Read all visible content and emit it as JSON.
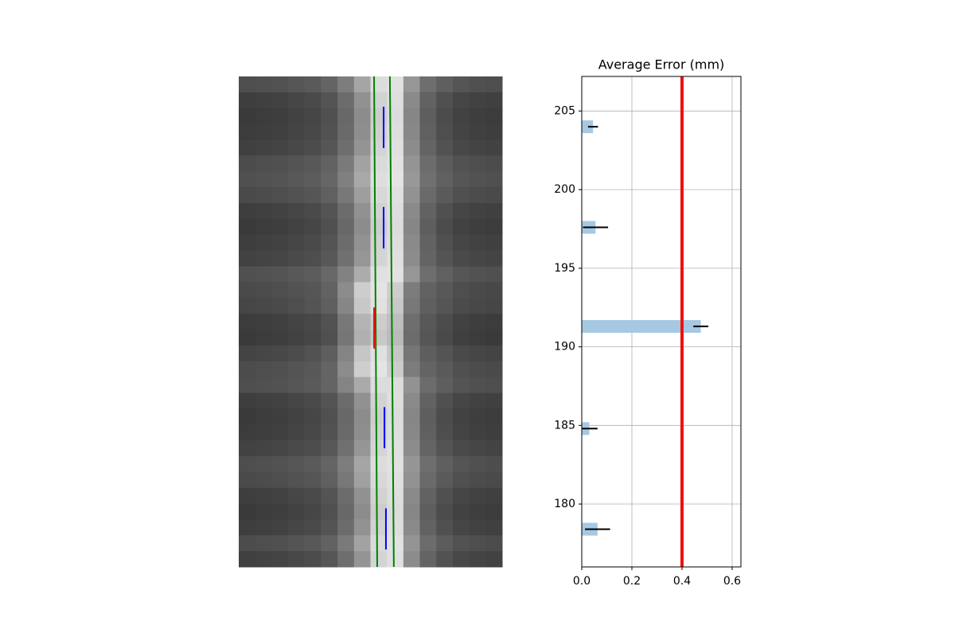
{
  "chart_data": [
    {
      "type": "image",
      "cmap": "gray",
      "values": [
        [
          78,
          80,
          82,
          86,
          90,
          100,
          125,
          165,
          220,
          225,
          150,
          110,
          95,
          85,
          80,
          78
        ],
        [
          62,
          64,
          66,
          70,
          74,
          84,
          108,
          145,
          210,
          222,
          138,
          98,
          80,
          70,
          66,
          64
        ],
        [
          58,
          60,
          62,
          66,
          70,
          80,
          104,
          140,
          205,
          220,
          134,
          94,
          76,
          66,
          62,
          60
        ],
        [
          60,
          62,
          64,
          68,
          72,
          82,
          106,
          142,
          208,
          222,
          136,
          96,
          78,
          68,
          64,
          62
        ],
        [
          64,
          66,
          68,
          72,
          76,
          86,
          110,
          148,
          212,
          224,
          140,
          100,
          82,
          72,
          68,
          66
        ],
        [
          76,
          78,
          80,
          84,
          88,
          98,
          122,
          162,
          218,
          226,
          148,
          108,
          92,
          82,
          78,
          76
        ],
        [
          80,
          82,
          84,
          88,
          92,
          102,
          128,
          168,
          222,
          228,
          152,
          112,
          96,
          86,
          82,
          80
        ],
        [
          74,
          76,
          78,
          82,
          86,
          96,
          120,
          158,
          216,
          224,
          146,
          106,
          90,
          80,
          76,
          74
        ],
        [
          62,
          64,
          66,
          70,
          74,
          84,
          108,
          145,
          210,
          222,
          138,
          98,
          80,
          70,
          66,
          64
        ],
        [
          58,
          60,
          62,
          66,
          70,
          80,
          104,
          140,
          205,
          220,
          134,
          94,
          76,
          66,
          62,
          60
        ],
        [
          62,
          64,
          66,
          70,
          74,
          84,
          108,
          146,
          210,
          222,
          138,
          98,
          80,
          70,
          66,
          64
        ],
        [
          66,
          68,
          70,
          74,
          78,
          88,
          112,
          150,
          212,
          224,
          140,
          100,
          84,
          74,
          70,
          68
        ],
        [
          80,
          82,
          84,
          88,
          92,
          104,
          130,
          172,
          224,
          226,
          150,
          110,
          96,
          86,
          82,
          80
        ],
        [
          74,
          76,
          78,
          82,
          86,
          98,
          140,
          205,
          228,
          205,
          124,
          98,
          88,
          78,
          74,
          72
        ],
        [
          70,
          72,
          74,
          78,
          84,
          95,
          134,
          200,
          225,
          200,
          120,
          95,
          85,
          75,
          72,
          70
        ],
        [
          60,
          62,
          64,
          68,
          72,
          82,
          120,
          180,
          205,
          190,
          110,
          88,
          76,
          66,
          62,
          60
        ],
        [
          58,
          60,
          62,
          66,
          70,
          80,
          118,
          176,
          200,
          186,
          108,
          86,
          74,
          64,
          60,
          58
        ],
        [
          68,
          70,
          72,
          76,
          82,
          94,
          132,
          198,
          224,
          198,
          118,
          94,
          84,
          74,
          70,
          68
        ],
        [
          76,
          78,
          80,
          84,
          88,
          100,
          140,
          206,
          228,
          204,
          124,
          100,
          90,
          80,
          76,
          74
        ],
        [
          78,
          80,
          82,
          86,
          90,
          100,
          132,
          170,
          220,
          220,
          146,
          108,
          94,
          84,
          80,
          78
        ],
        [
          62,
          64,
          66,
          70,
          74,
          84,
          108,
          145,
          210,
          222,
          138,
          98,
          80,
          70,
          66,
          64
        ],
        [
          58,
          60,
          62,
          66,
          70,
          80,
          104,
          140,
          205,
          220,
          134,
          94,
          76,
          66,
          62,
          60
        ],
        [
          60,
          62,
          64,
          68,
          72,
          82,
          106,
          142,
          208,
          222,
          136,
          96,
          78,
          68,
          64,
          62
        ],
        [
          66,
          68,
          70,
          74,
          78,
          88,
          112,
          150,
          212,
          224,
          140,
          100,
          84,
          74,
          70,
          68
        ],
        [
          78,
          80,
          82,
          86,
          90,
          100,
          125,
          165,
          220,
          225,
          150,
          110,
          95,
          85,
          80,
          78
        ],
        [
          74,
          76,
          78,
          82,
          86,
          96,
          120,
          160,
          216,
          224,
          146,
          106,
          90,
          80,
          76,
          74
        ],
        [
          62,
          64,
          66,
          70,
          74,
          84,
          108,
          145,
          210,
          222,
          138,
          98,
          80,
          70,
          66,
          64
        ],
        [
          58,
          60,
          62,
          66,
          70,
          80,
          104,
          140,
          205,
          220,
          134,
          94,
          76,
          66,
          62,
          60
        ],
        [
          62,
          64,
          66,
          70,
          74,
          84,
          108,
          146,
          210,
          222,
          138,
          98,
          80,
          70,
          66,
          64
        ],
        [
          76,
          78,
          80,
          84,
          88,
          98,
          122,
          162,
          218,
          226,
          148,
          108,
          92,
          82,
          78,
          76
        ],
        [
          64,
          66,
          68,
          72,
          76,
          86,
          110,
          148,
          212,
          224,
          140,
          100,
          82,
          72,
          68,
          66
        ]
      ],
      "lines": [
        {
          "color": "green",
          "x": [
            8.22,
            8.41
          ],
          "y": [
            0,
            31
          ]
        },
        {
          "color": "green",
          "x": [
            9.18,
            9.42
          ],
          "y": [
            0,
            31
          ]
        },
        {
          "color": "blue",
          "x": [
            8.8,
            8.8
          ],
          "y": [
            1.91,
            4.53
          ]
        },
        {
          "color": "blue",
          "x": [
            8.8,
            8.8
          ],
          "y": [
            8.25,
            10.87
          ]
        },
        {
          "color": "red",
          "x": [
            8.22,
            8.22
          ],
          "y": [
            14.6,
            17.2
          ]
        },
        {
          "color": "blue",
          "x": [
            8.85,
            8.85
          ],
          "y": [
            20.9,
            23.5
          ]
        },
        {
          "color": "blue",
          "x": [
            8.94,
            8.94
          ],
          "y": [
            27.3,
            29.9
          ]
        }
      ]
    },
    {
      "type": "barh",
      "title": "Average Error (mm)",
      "color": "#a6c8e2",
      "y": [
        204,
        197.6,
        191.3,
        184.8,
        178.4
      ],
      "values": [
        0.045,
        0.055,
        0.475,
        0.03,
        0.063
      ],
      "errors": [
        0.02,
        0.05,
        0.03,
        0.033,
        0.05
      ],
      "reference_line": {
        "value": 0.4,
        "color": "#ee1111"
      },
      "xlim": [
        0,
        0.635
      ],
      "ylim": [
        176.0,
        207.2
      ],
      "xticks": [
        {
          "value": 0,
          "label": "0.0"
        },
        0.2,
        0.4,
        0.6
      ],
      "yticks": [
        180,
        185,
        190,
        195,
        200,
        205
      ],
      "grid": true
    }
  ]
}
